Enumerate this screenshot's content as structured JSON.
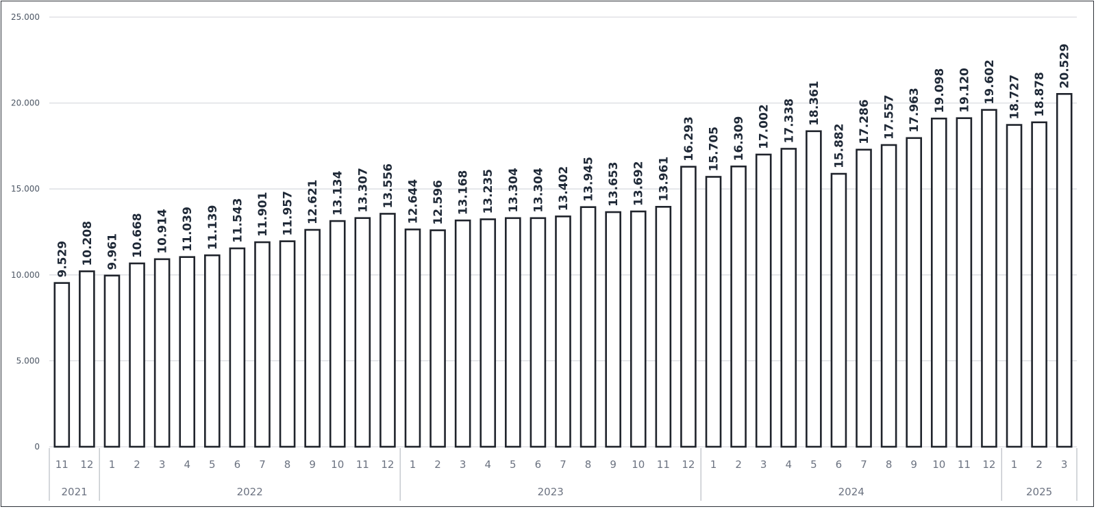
{
  "chart_data": {
    "type": "bar",
    "title": "",
    "xlabel": "",
    "ylabel": "",
    "ylim": [
      0,
      25000
    ],
    "yticks": [
      0,
      5000,
      10000,
      15000,
      20000,
      25000
    ],
    "ytick_labels": [
      "0",
      "5.000",
      "10.000",
      "15.000",
      "20.000",
      "25.000"
    ],
    "grid": true,
    "legend": "none",
    "colors": {
      "bar_fill": "#ffffff",
      "bar_stroke": "#1f232b",
      "grid": "#d9dbe0",
      "label": "#1f2937",
      "tick": "#6b7280"
    },
    "categories": [
      "11",
      "12",
      "1",
      "2",
      "3",
      "4",
      "5",
      "6",
      "7",
      "8",
      "9",
      "10",
      "11",
      "12",
      "1",
      "2",
      "3",
      "4",
      "5",
      "6",
      "7",
      "8",
      "9",
      "10",
      "11",
      "12",
      "1",
      "2",
      "3",
      "4",
      "5",
      "6",
      "7",
      "8",
      "9",
      "10",
      "11",
      "12",
      "1",
      "2",
      "3"
    ],
    "values": [
      9529,
      10208,
      9961,
      10668,
      10914,
      11039,
      11139,
      11543,
      11901,
      11957,
      12621,
      13134,
      13307,
      13556,
      12644,
      12596,
      13168,
      13235,
      13304,
      13304,
      13402,
      13945,
      13653,
      13692,
      13961,
      16293,
      15705,
      16309,
      17002,
      17338,
      18361,
      15882,
      17286,
      17557,
      17963,
      19098,
      19120,
      19602,
      18727,
      18878,
      20529
    ],
    "value_labels": [
      "9.529",
      "10.208",
      "9.961",
      "10.668",
      "10.914",
      "11.039",
      "11.139",
      "11.543",
      "11.901",
      "11.957",
      "12.621",
      "13.134",
      "13.307",
      "13.556",
      "12.644",
      "12.596",
      "13.168",
      "13.235",
      "13.304",
      "13.304",
      "13.402",
      "13.945",
      "13.653",
      "13.692",
      "13.961",
      "16.293",
      "15.705",
      "16.309",
      "17.002",
      "17.338",
      "18.361",
      "15.882",
      "17.286",
      "17.557",
      "17.963",
      "19.098",
      "19.120",
      "19.602",
      "18.727",
      "18.878",
      "20.529"
    ],
    "year_groups": [
      {
        "label": "2021",
        "count": 2
      },
      {
        "label": "2022",
        "count": 12
      },
      {
        "label": "2023",
        "count": 12
      },
      {
        "label": "2024",
        "count": 12
      },
      {
        "label": "2025",
        "count": 3
      }
    ]
  }
}
